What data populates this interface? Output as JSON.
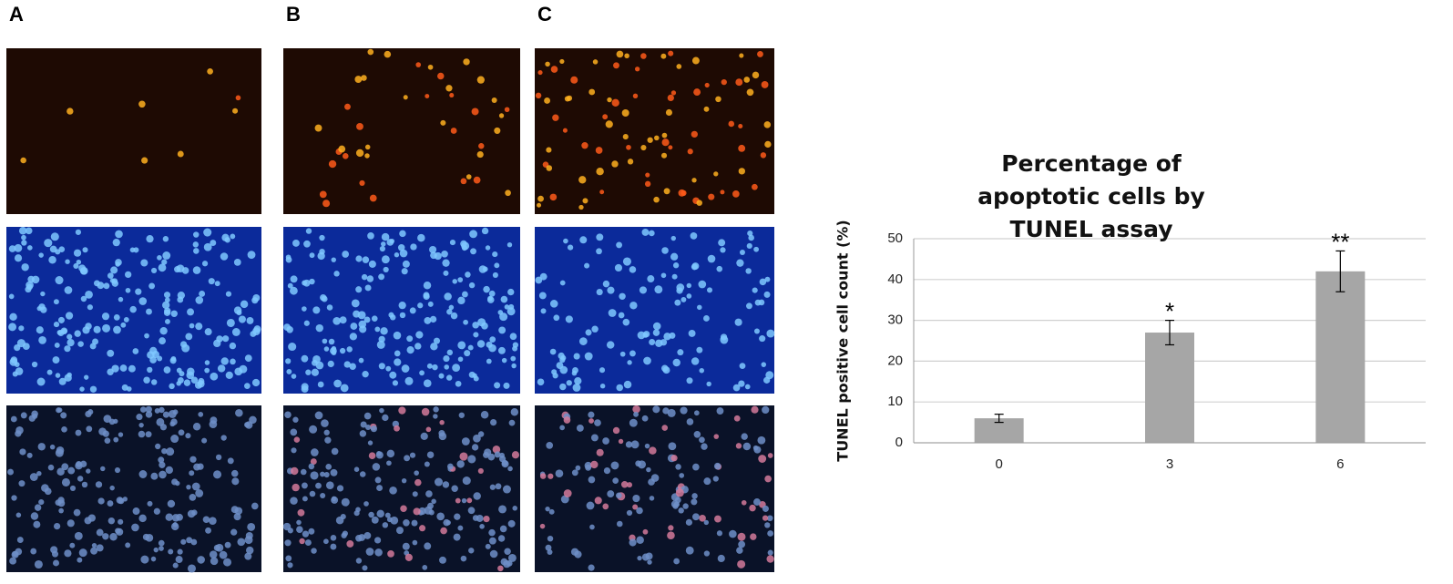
{
  "figure": {
    "panel_labels": [
      "A",
      "B",
      "C"
    ]
  },
  "chart_data": {
    "type": "bar",
    "title": "Percentage of apoptotic cells by TUNEL assay",
    "y_label": "TUNEL positive cell count (%)",
    "categories": [
      "0",
      "3",
      "6"
    ],
    "values": [
      6,
      27,
      42
    ],
    "errors": [
      1,
      3,
      5
    ],
    "annotations": [
      null,
      "*",
      "**"
    ],
    "color": "#a6a6a6",
    "ylim": [
      0,
      50
    ],
    "yticks": [
      0,
      10,
      20,
      30,
      40,
      50
    ],
    "grid": true
  }
}
